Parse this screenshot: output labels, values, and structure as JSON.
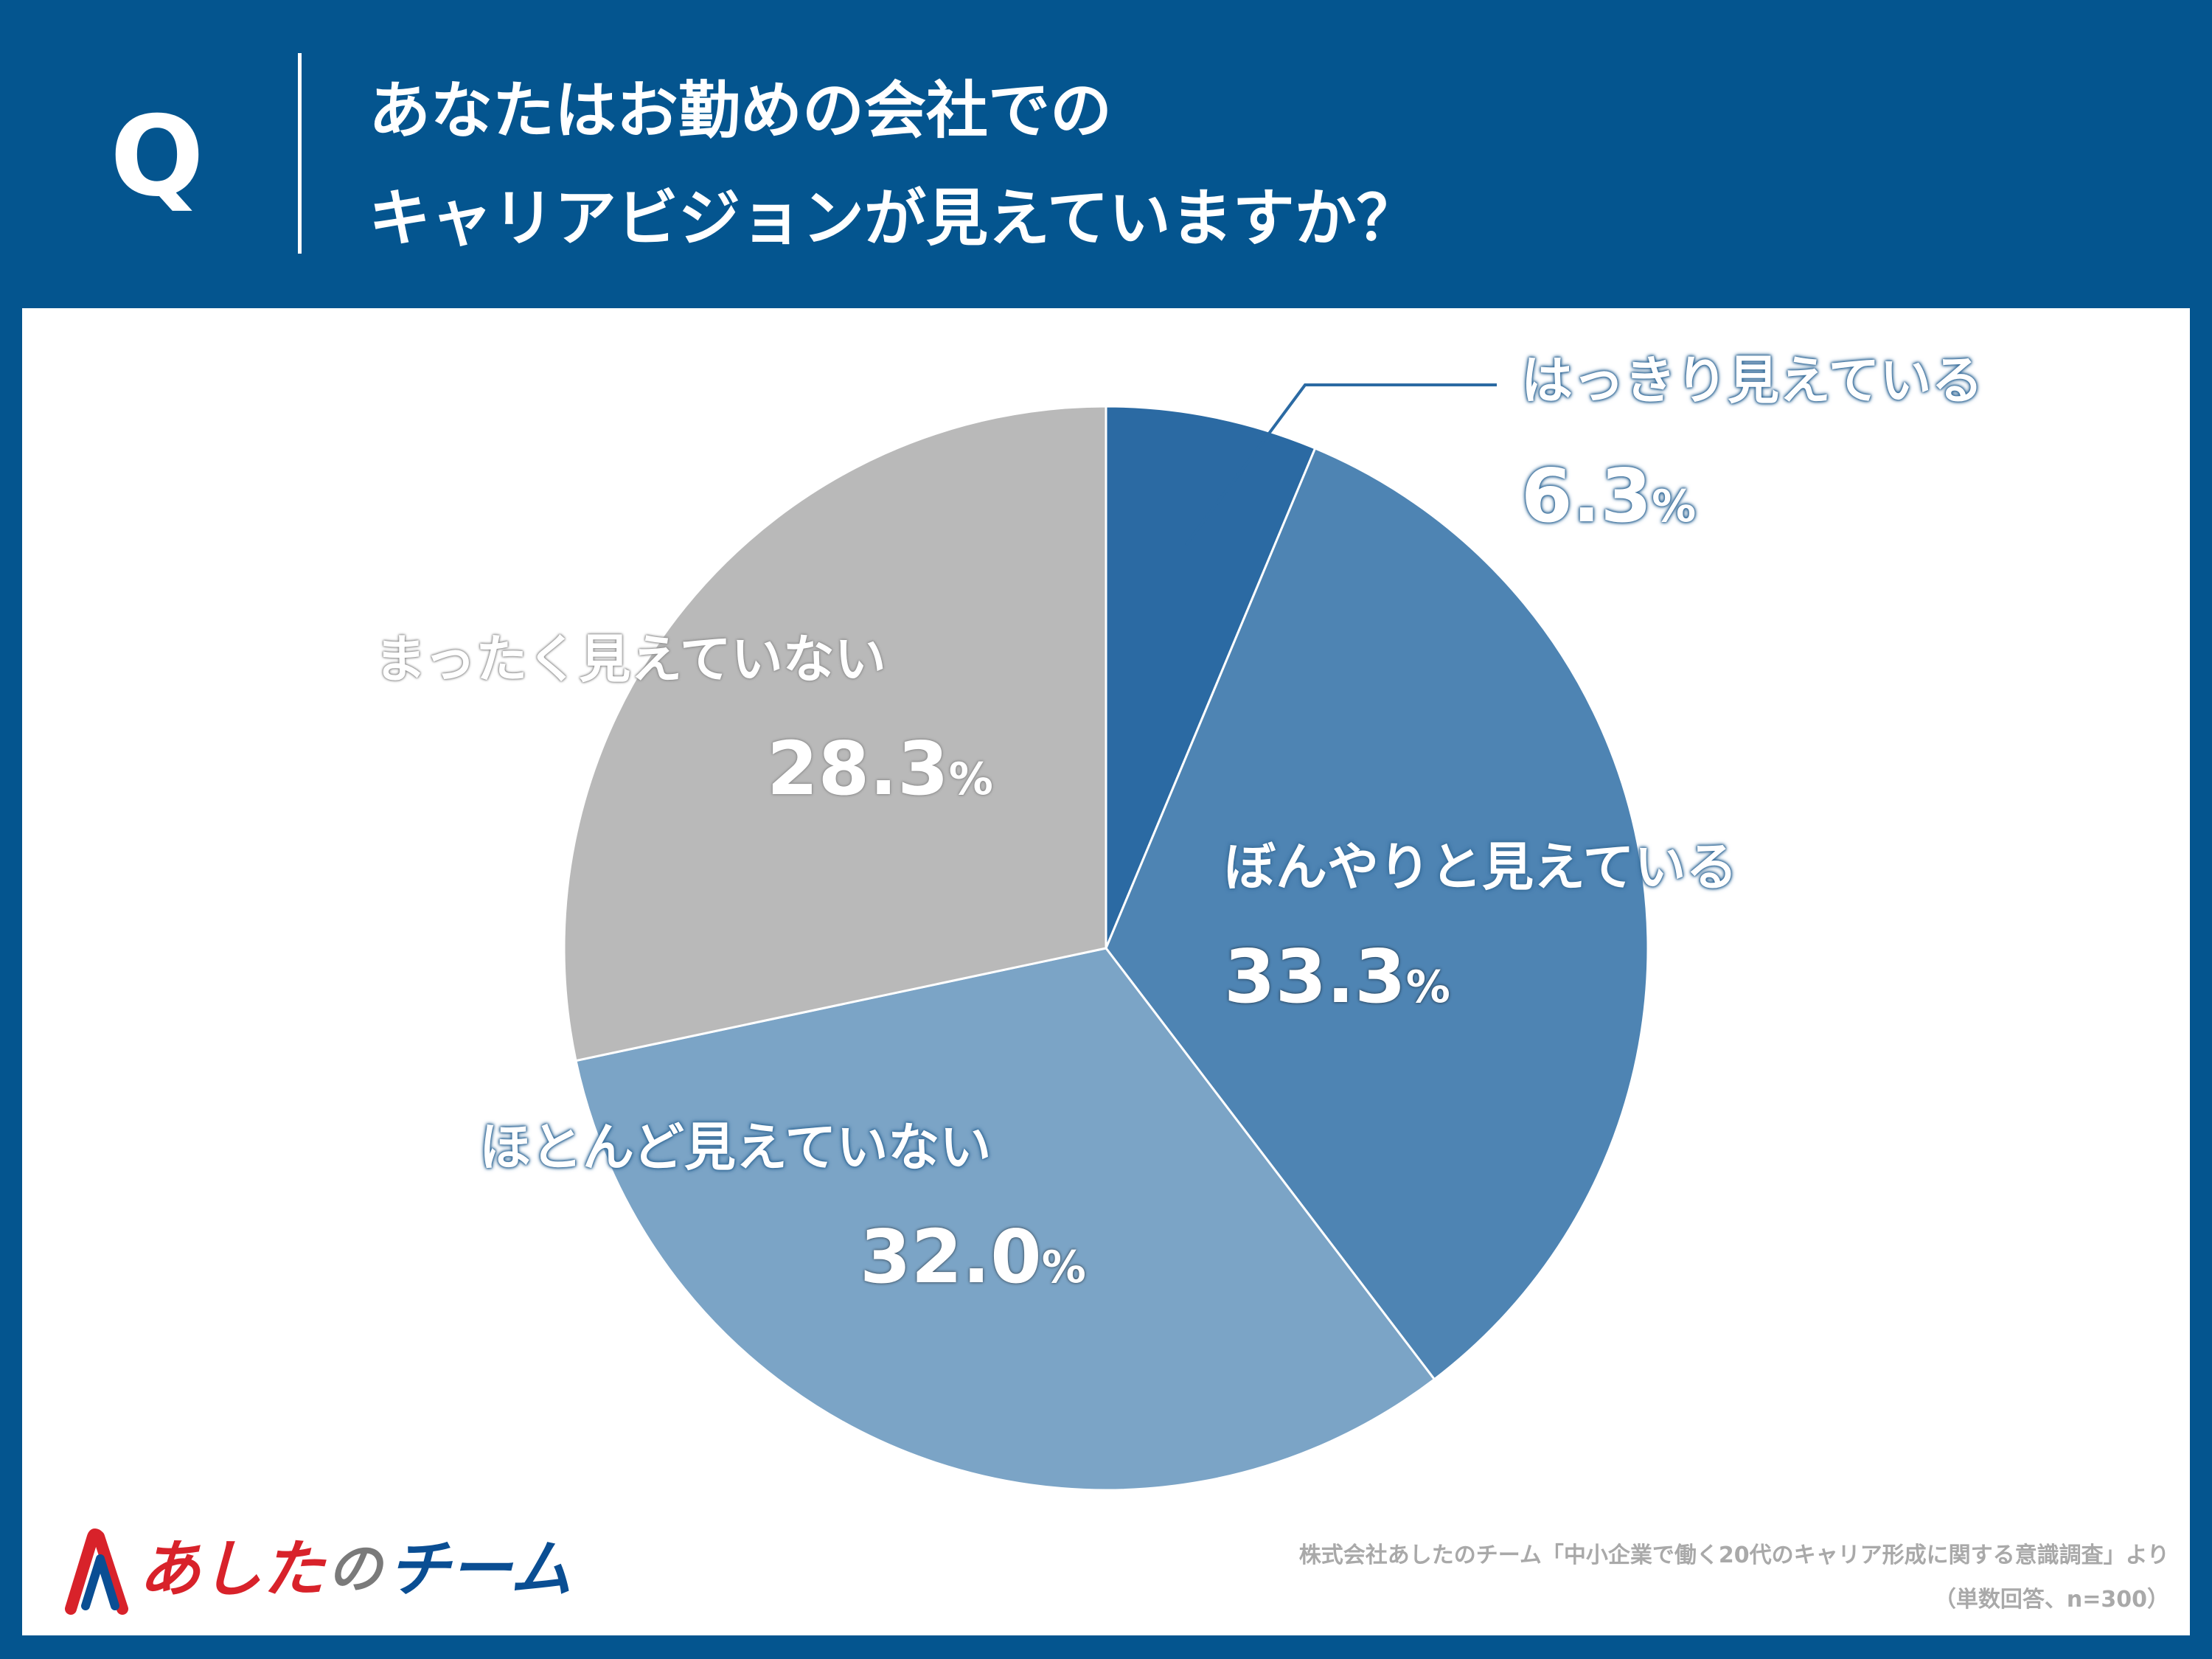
{
  "question": {
    "mark": "Q",
    "line1": "あなたはお勤めの会社での",
    "line2": "キャリアビジョンが見えていますか？"
  },
  "chart_data": {
    "type": "pie",
    "title": "あなたはお勤めの会社でのキャリアビジョンが見えていますか？",
    "unit": "%",
    "categories": [
      "はっきり見えている",
      "ぼんやりと見えている",
      "ほとんど見えていない",
      "まったく見えていない"
    ],
    "values": [
      6.3,
      33.3,
      32.0,
      28.3
    ],
    "labels": [
      "6.3",
      "33.3",
      "32.0",
      "28.3"
    ],
    "colors": [
      "#2b6aa3",
      "#4e84b3",
      "#7ba4c6",
      "#b9b9b9"
    ],
    "start": "12 o'clock",
    "direction": "clockwise",
    "legend": "none"
  },
  "footer": {
    "logo_text1": "あした",
    "logo_no": "の",
    "logo_text2": "チーム",
    "source": "株式会社あしたのチーム「中小企業で働く20代のキャリア形成に関する意識調査」より",
    "note": "（単数回答、n=300）"
  }
}
